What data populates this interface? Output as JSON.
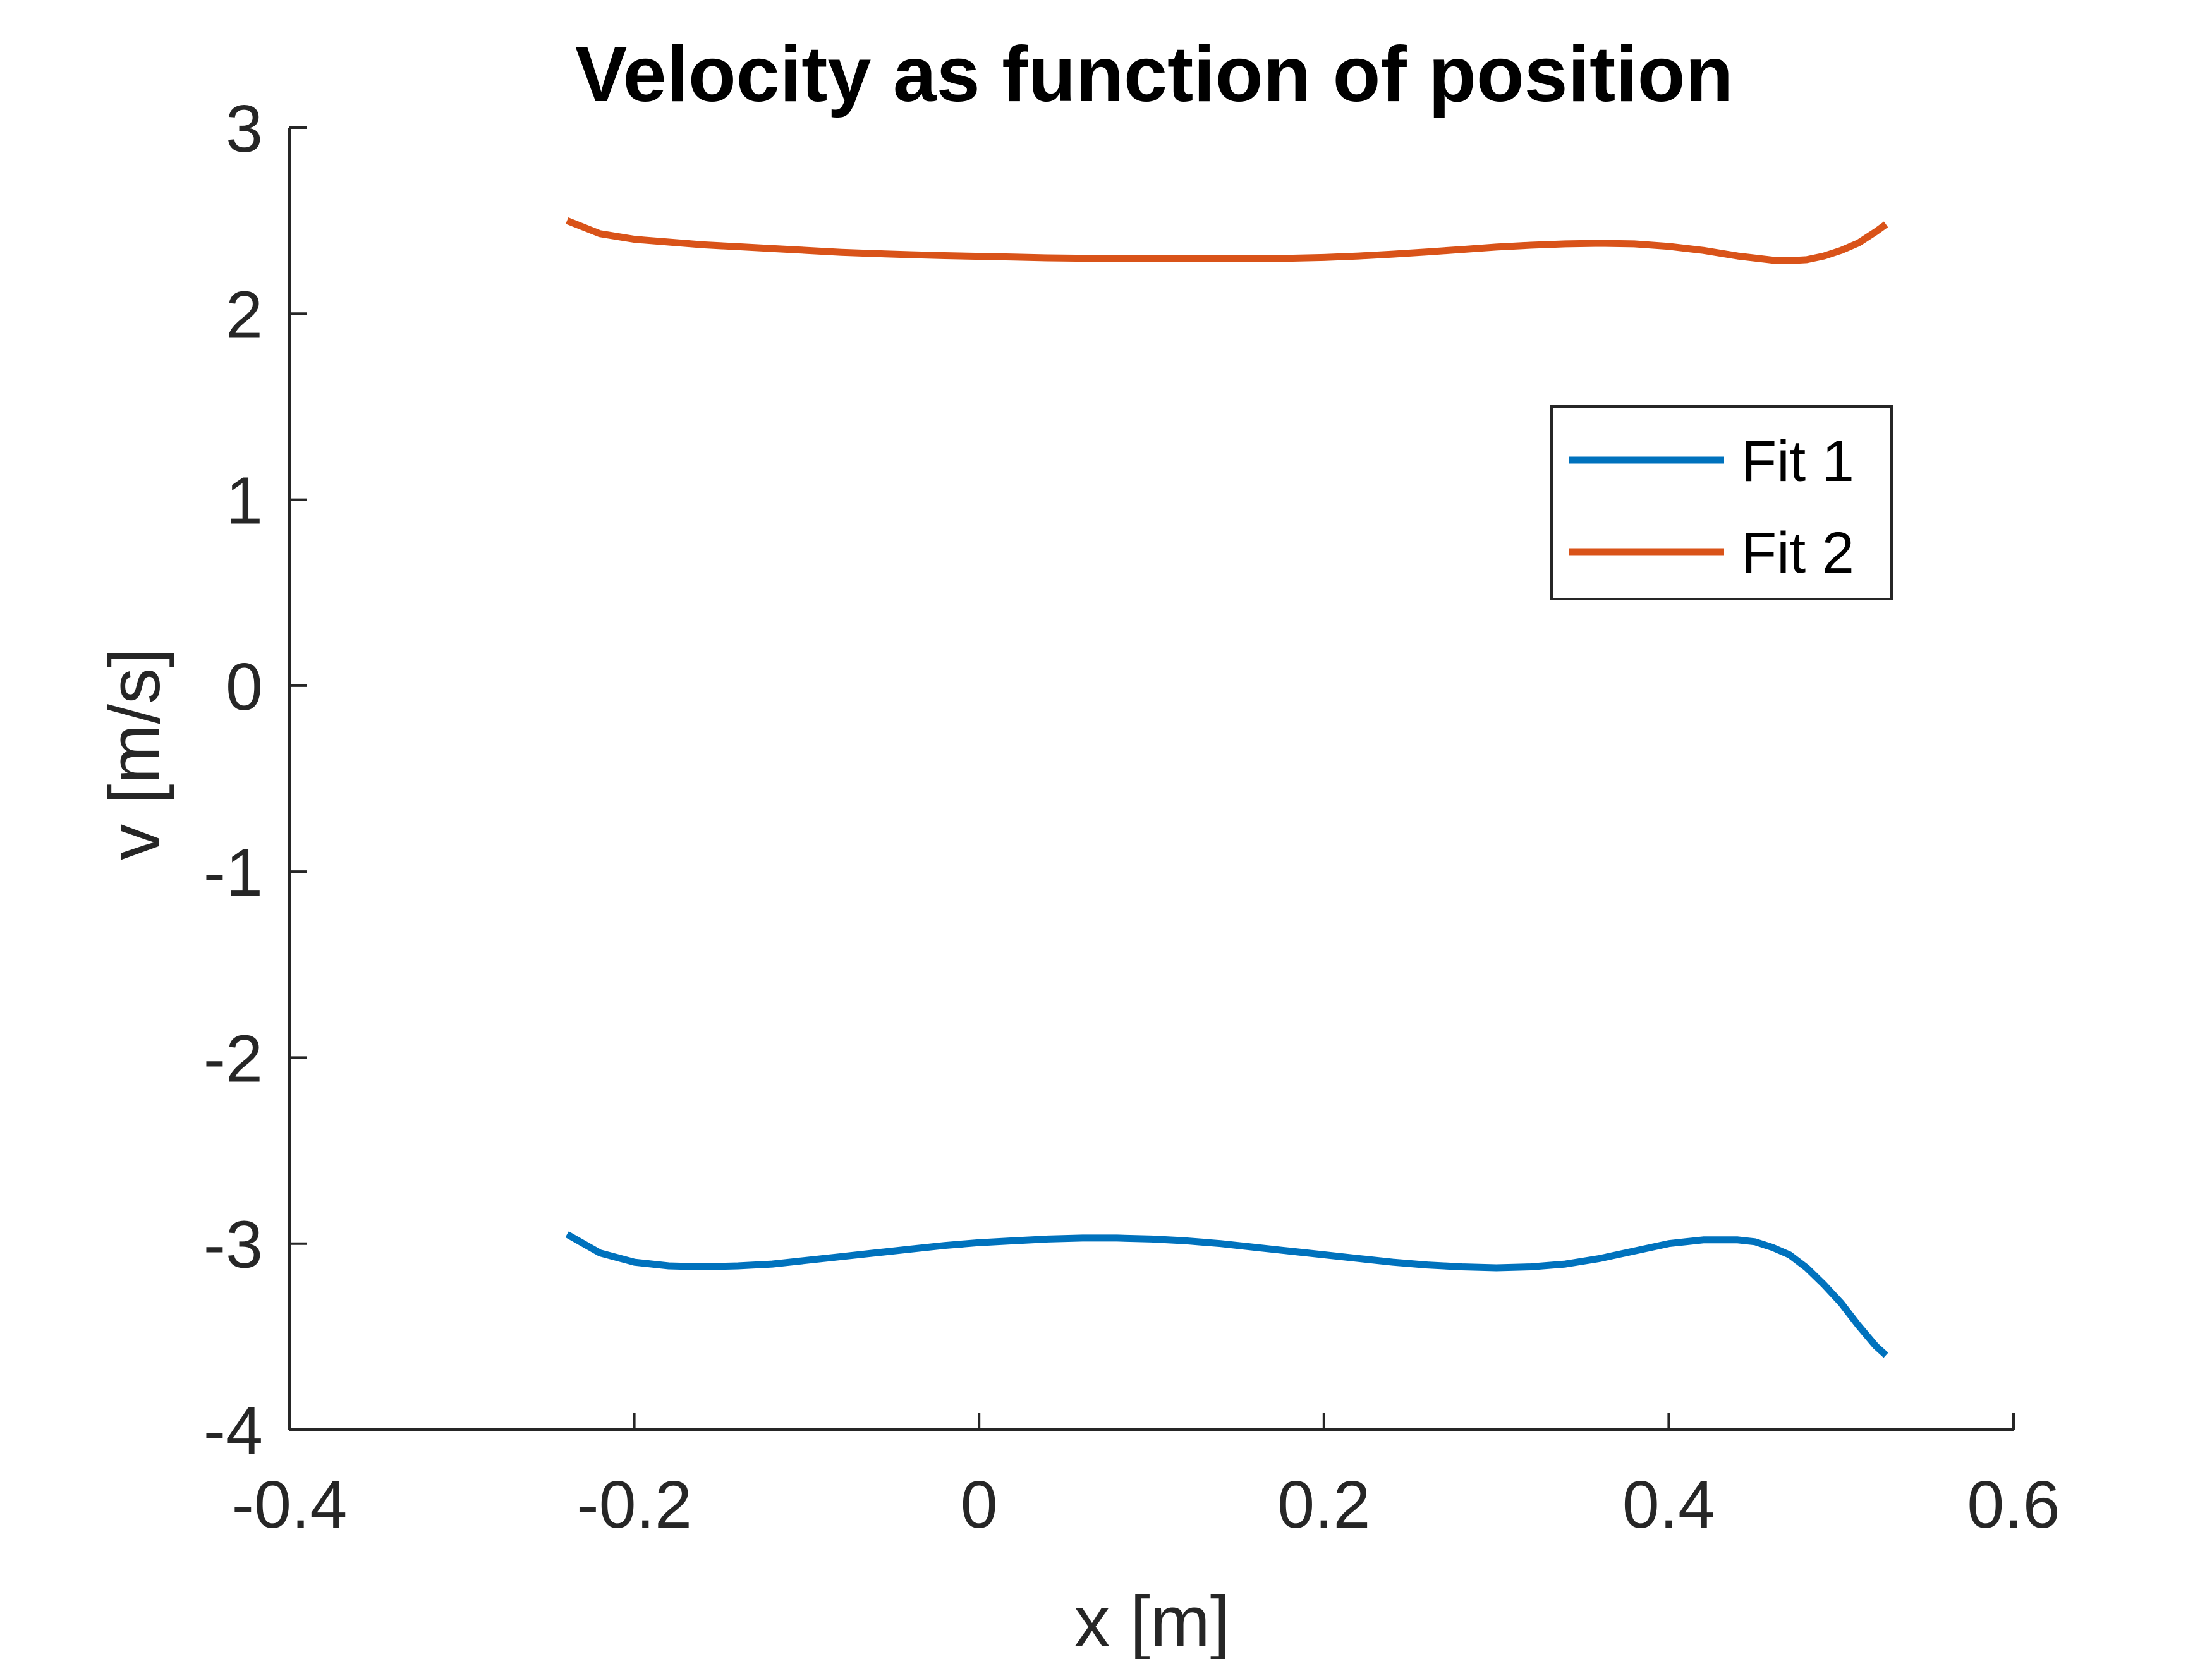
{
  "chart_data": {
    "type": "line",
    "title": "Velocity as function of position",
    "xlabel": "x [m]",
    "ylabel": "v [m/s]",
    "xlim": [
      -0.4,
      0.6
    ],
    "ylim": [
      -4,
      3
    ],
    "xticks": [
      -0.4,
      -0.2,
      0,
      0.2,
      0.4,
      0.6
    ],
    "yticks": [
      -4,
      -3,
      -2,
      -1,
      0,
      1,
      2,
      3
    ],
    "xtick_labels": [
      "-0.4",
      "-0.2",
      "0",
      "0.2",
      "0.4",
      "0.6"
    ],
    "ytick_labels": [
      "-4",
      "-3",
      "-2",
      "-1",
      "0",
      "1",
      "2",
      "3"
    ],
    "grid": false,
    "legend_position": "right-upper",
    "series": [
      {
        "name": "Fit 1",
        "color": "#0072BD",
        "x": [
          -0.239,
          -0.22,
          -0.2,
          -0.18,
          -0.16,
          -0.14,
          -0.12,
          -0.1,
          -0.08,
          -0.06,
          -0.04,
          -0.02,
          0,
          0.02,
          0.04,
          0.06,
          0.08,
          0.1,
          0.12,
          0.14,
          0.16,
          0.18,
          0.2,
          0.22,
          0.24,
          0.26,
          0.28,
          0.3,
          0.32,
          0.34,
          0.36,
          0.38,
          0.4,
          0.42,
          0.44,
          0.45,
          0.46,
          0.47,
          0.48,
          0.49,
          0.5,
          0.51,
          0.52,
          0.526
        ],
        "y": [
          -2.95,
          -3.05,
          -3.1,
          -3.12,
          -3.125,
          -3.12,
          -3.11,
          -3.09,
          -3.07,
          -3.05,
          -3.03,
          -3.01,
          -2.995,
          -2.985,
          -2.975,
          -2.97,
          -2.97,
          -2.975,
          -2.985,
          -3.0,
          -3.02,
          -3.04,
          -3.06,
          -3.08,
          -3.1,
          -3.115,
          -3.125,
          -3.13,
          -3.125,
          -3.11,
          -3.08,
          -3.04,
          -3.0,
          -2.98,
          -2.98,
          -2.99,
          -3.02,
          -3.06,
          -3.13,
          -3.22,
          -3.32,
          -3.44,
          -3.55,
          -3.6
        ]
      },
      {
        "name": "Fit 2",
        "color": "#D95319",
        "x": [
          -0.239,
          -0.22,
          -0.2,
          -0.18,
          -0.16,
          -0.14,
          -0.12,
          -0.1,
          -0.08,
          -0.06,
          -0.04,
          -0.02,
          0,
          0.02,
          0.04,
          0.06,
          0.08,
          0.1,
          0.12,
          0.14,
          0.16,
          0.18,
          0.2,
          0.22,
          0.24,
          0.26,
          0.28,
          0.3,
          0.32,
          0.34,
          0.36,
          0.38,
          0.4,
          0.42,
          0.44,
          0.46,
          0.47,
          0.48,
          0.49,
          0.5,
          0.51,
          0.52,
          0.526
        ],
        "y": [
          2.5,
          2.43,
          2.4,
          2.385,
          2.37,
          2.36,
          2.35,
          2.34,
          2.33,
          2.323,
          2.317,
          2.312,
          2.308,
          2.304,
          2.3,
          2.298,
          2.296,
          2.295,
          2.295,
          2.295,
          2.296,
          2.298,
          2.302,
          2.31,
          2.32,
          2.332,
          2.345,
          2.358,
          2.368,
          2.375,
          2.378,
          2.375,
          2.362,
          2.34,
          2.31,
          2.288,
          2.285,
          2.29,
          2.31,
          2.34,
          2.38,
          2.44,
          2.48
        ]
      }
    ]
  }
}
